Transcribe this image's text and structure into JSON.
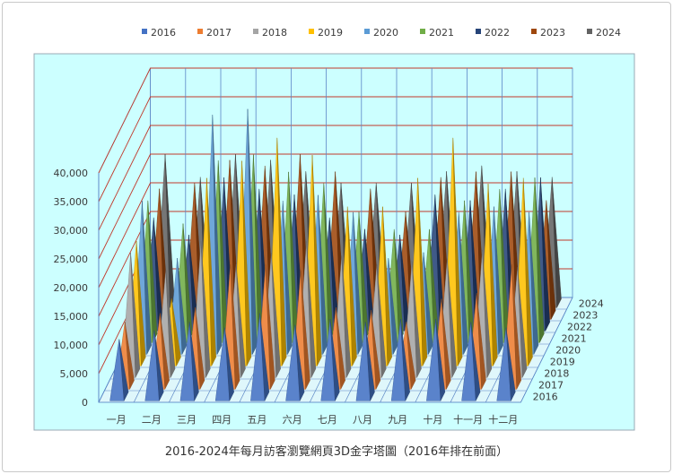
{
  "chart_data": {
    "type": "bar",
    "subtype": "3d-pyramid",
    "title": "2016-2024年每月訪客瀏覽網頁3D金字塔圖（2016年排在前面）",
    "categories": [
      "一月",
      "二月",
      "三月",
      "四月",
      "五月",
      "六月",
      "七月",
      "八月",
      "九月",
      "十月",
      "十一月",
      "十二月"
    ],
    "ylim": [
      0,
      40000
    ],
    "yticks": [
      "0",
      "5,000",
      "10,000",
      "15,000",
      "20,000",
      "25,000",
      "30,000",
      "35,000",
      "40,000"
    ],
    "ytick_values": [
      0,
      5000,
      10000,
      15000,
      20000,
      25000,
      30000,
      35000,
      40000
    ],
    "legend_position": "top",
    "background_color": "#ccffff",
    "series": [
      {
        "name": "2016",
        "color": "#4472c4",
        "values": [
          10000,
          11500,
          13000,
          12000,
          14500,
          12500,
          13500,
          13000,
          13500,
          13500,
          13000,
          12000
        ]
      },
      {
        "name": "2017",
        "color": "#ed7d31",
        "values": [
          11000,
          12500,
          13500,
          21000,
          21000,
          20000,
          13500,
          13000,
          11000,
          15000,
          16000,
          21000
        ]
      },
      {
        "name": "2018",
        "color": "#a5a5a5",
        "values": [
          21000,
          18000,
          23000,
          19000,
          21000,
          23000,
          20500,
          19000,
          19500,
          20000,
          21500,
          18500
        ]
      },
      {
        "name": "2019",
        "color": "#ffc000",
        "values": [
          21000,
          11000,
          32000,
          35000,
          39000,
          36000,
          27000,
          27000,
          32000,
          39000,
          31000,
          32000
        ]
      },
      {
        "name": "2020",
        "color": "#5b9bd5",
        "values": [
          26000,
          16000,
          41000,
          42000,
          26000,
          27000,
          24000,
          16000,
          17000,
          24000,
          25000,
          24000
        ]
      },
      {
        "name": "2021",
        "color": "#70ad47",
        "values": [
          24000,
          20000,
          31000,
          32000,
          29000,
          27000,
          22000,
          19000,
          19000,
          24000,
          26000,
          28000
        ]
      },
      {
        "name": "2022",
        "color": "#264478",
        "values": [
          19000,
          16000,
          26000,
          24000,
          23000,
          19000,
          17000,
          16000,
          23000,
          22000,
          24000,
          26000
        ]
      },
      {
        "name": "2023",
        "color": "#9e480e",
        "values": [
          22000,
          23000,
          27000,
          26000,
          28000,
          25000,
          22000,
          18000,
          24000,
          25000,
          25000,
          20000
        ]
      },
      {
        "name": "2024",
        "color": "#636363",
        "values": [
          26000,
          22000,
          26000,
          25000,
          23000,
          21000,
          21000,
          21000,
          23000,
          24000,
          23000,
          22000
        ]
      }
    ]
  }
}
